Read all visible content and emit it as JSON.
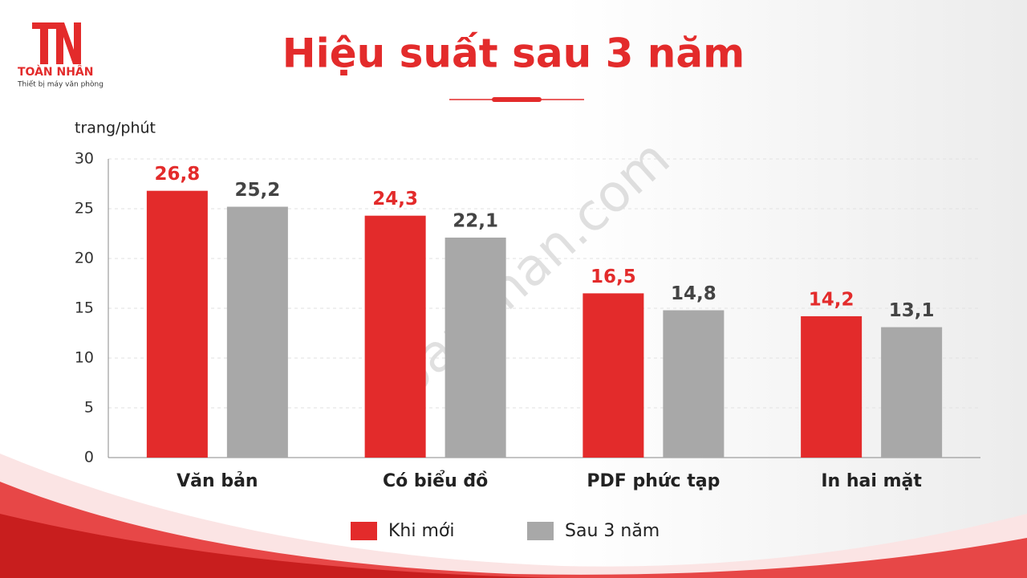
{
  "logo": {
    "name": "TOÀN NHÂN",
    "tagline": "Thiết bị máy văn phòng"
  },
  "watermark": "toannhan.com",
  "chart_data": {
    "type": "bar",
    "title": "Hiệu suất sau 3 năm",
    "y_label": "trang/phút",
    "categories": [
      "Văn bản",
      "Có biểu đồ",
      "PDF phức tạp",
      "In hai mặt"
    ],
    "series": [
      {
        "name": "Khi mới",
        "color": "#e32b2b",
        "values": [
          26.8,
          24.3,
          16.5,
          14.2
        ],
        "value_labels": [
          "26,8",
          "24,3",
          "16,5",
          "14,2"
        ]
      },
      {
        "name": "Sau 3 năm",
        "color": "#a8a8a8",
        "values": [
          25.2,
          22.1,
          14.8,
          13.1
        ],
        "value_labels": [
          "25,2",
          "22,1",
          "14,8",
          "13,1"
        ]
      }
    ],
    "ylim": [
      0,
      30
    ],
    "yticks": [
      0,
      5,
      10,
      15,
      20,
      25,
      30
    ],
    "grid": true,
    "legend": "bottom"
  }
}
